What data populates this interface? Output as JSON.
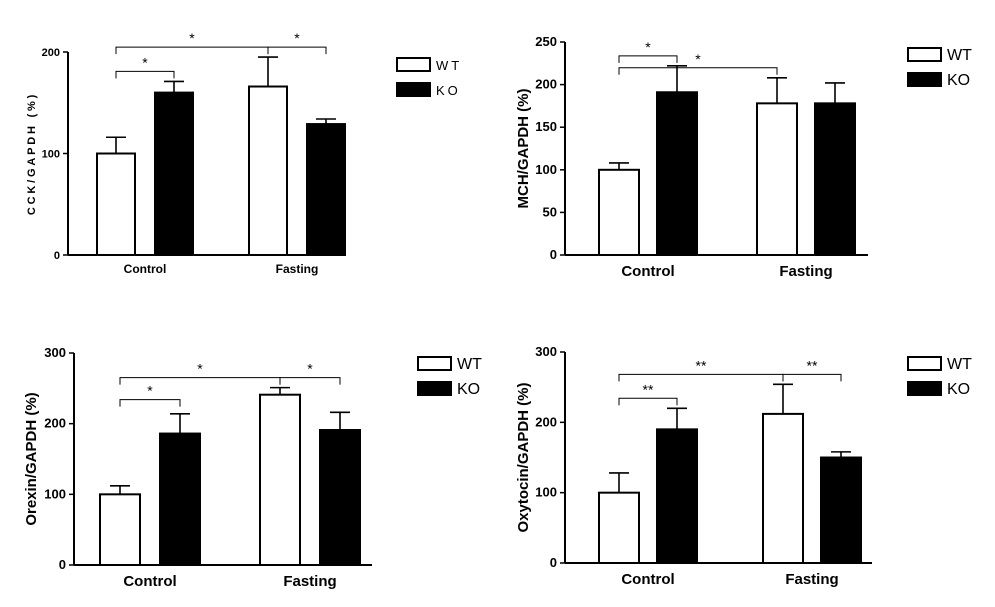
{
  "legend_labels": [
    "WT",
    "KO"
  ],
  "colors": {
    "WT": "#ffffff",
    "KO": "#000000",
    "axis": "#000000"
  },
  "chart_data": [
    {
      "type": "bar",
      "ylabel": "CCK/GAPDH (%)",
      "categories": [
        "Control",
        "Fasting"
      ],
      "series": [
        {
          "name": "WT",
          "values": [
            100,
            166
          ],
          "errors": [
            16,
            29
          ]
        },
        {
          "name": "KO",
          "values": [
            160,
            129
          ],
          "errors": [
            11,
            5
          ]
        }
      ],
      "ylim": [
        0,
        200
      ],
      "yticks": [
        0,
        100,
        200
      ],
      "comparisons": [
        {
          "label": "*",
          "from": "Control-WT",
          "to": "Control-KO"
        },
        {
          "label": "*",
          "from": "Control-WT",
          "to": "Fasting-WT"
        },
        {
          "label": "*",
          "from": "Fasting-WT",
          "to": "Fasting-KO"
        }
      ]
    },
    {
      "type": "bar",
      "ylabel": "MCH/GAPDH (%)",
      "categories": [
        "Control",
        "Fasting"
      ],
      "series": [
        {
          "name": "WT",
          "values": [
            100,
            178
          ],
          "errors": [
            8,
            30
          ]
        },
        {
          "name": "KO",
          "values": [
            191,
            178
          ],
          "errors": [
            31,
            24
          ]
        }
      ],
      "ylim": [
        0,
        250
      ],
      "yticks": [
        0,
        50,
        100,
        150,
        200,
        250
      ],
      "comparisons": [
        {
          "label": "*",
          "from": "Control-WT",
          "to": "Control-KO"
        },
        {
          "label": "*",
          "from": "Control-WT",
          "to": "Fasting-WT"
        }
      ]
    },
    {
      "type": "bar",
      "ylabel": "Orexin/GAPDH (%)",
      "categories": [
        "Control",
        "Fasting"
      ],
      "series": [
        {
          "name": "WT",
          "values": [
            100,
            241
          ],
          "errors": [
            12,
            10
          ]
        },
        {
          "name": "KO",
          "values": [
            186,
            191
          ],
          "errors": [
            28,
            25
          ]
        }
      ],
      "ylim": [
        0,
        300
      ],
      "yticks": [
        0,
        100,
        200,
        300
      ],
      "comparisons": [
        {
          "label": "*",
          "from": "Control-WT",
          "to": "Control-KO"
        },
        {
          "label": "*",
          "from": "Control-WT",
          "to": "Fasting-WT"
        },
        {
          "label": "*",
          "from": "Fasting-WT",
          "to": "Fasting-KO"
        }
      ]
    },
    {
      "type": "bar",
      "ylabel": "Oxytocin/GAPDH (%)",
      "categories": [
        "Control",
        "Fasting"
      ],
      "series": [
        {
          "name": "WT",
          "values": [
            100,
            212
          ],
          "errors": [
            28,
            42
          ]
        },
        {
          "name": "KO",
          "values": [
            190,
            150
          ],
          "errors": [
            30,
            8
          ]
        }
      ],
      "ylim": [
        0,
        300
      ],
      "yticks": [
        0,
        100,
        200,
        300
      ],
      "comparisons": [
        {
          "label": "**",
          "from": "Control-WT",
          "to": "Control-KO"
        },
        {
          "label": "**",
          "from": "Control-WT",
          "to": "Fasting-WT"
        },
        {
          "label": "**",
          "from": "Fasting-WT",
          "to": "Fasting-KO"
        }
      ]
    }
  ]
}
